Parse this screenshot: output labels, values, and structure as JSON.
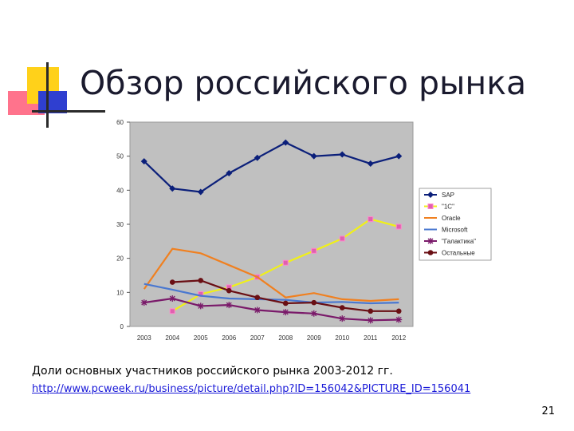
{
  "slide": {
    "title": "Обзор российского рынка",
    "caption": "Доли основных участников российского рынка 2003-2012 гг.",
    "source_url": "http://www.pcweek.ru/business/picture/detail.php?ID=156042&PICTURE_ID=156041",
    "page_number": "21"
  },
  "chart_data": {
    "type": "line",
    "title": "",
    "xlabel": "",
    "ylabel": "",
    "ylim": [
      0,
      60
    ],
    "yticks": [
      0,
      10,
      20,
      30,
      40,
      50,
      60
    ],
    "categories": [
      "2003",
      "2004",
      "2005",
      "2006",
      "2007",
      "2008",
      "2009",
      "2010",
      "2011",
      "2012"
    ],
    "grid": false,
    "plot_background": "#c0c0c0",
    "legend_position": "right",
    "series": [
      {
        "name": "SAP",
        "color": "#0b1f7a",
        "marker": "diamond",
        "values": [
          48.5,
          40.5,
          39.5,
          45,
          49.5,
          54,
          50,
          50.5,
          47.8,
          50
        ]
      },
      {
        "name": "\"1С\"",
        "color": "#f0f018",
        "marker": "square-pink",
        "values": [
          null,
          4.5,
          9.5,
          11.5,
          14.5,
          18.7,
          22.2,
          25.8,
          31.5,
          29.3
        ]
      },
      {
        "name": "Oracle",
        "color": "#f08020",
        "marker": "none",
        "values": [
          11,
          22.8,
          21.5,
          18,
          14.5,
          8.5,
          9.8,
          8,
          7.5,
          8
        ]
      },
      {
        "name": "Microsoft",
        "color": "#4a78d0",
        "marker": "none",
        "values": [
          12.5,
          10.8,
          9,
          8.2,
          8,
          7.8,
          7,
          7.2,
          6.8,
          7
        ]
      },
      {
        "name": "\"Галактика\"",
        "color": "#7a1a6a",
        "marker": "star",
        "values": [
          7,
          8.2,
          6,
          6.3,
          4.8,
          4.2,
          3.8,
          2.3,
          1.8,
          2
        ]
      },
      {
        "name": "Остальные",
        "color": "#6a0f14",
        "marker": "circle",
        "values": [
          null,
          13,
          13.5,
          10.5,
          8.5,
          6.8,
          7,
          5.5,
          4.5,
          4.5
        ]
      }
    ]
  }
}
